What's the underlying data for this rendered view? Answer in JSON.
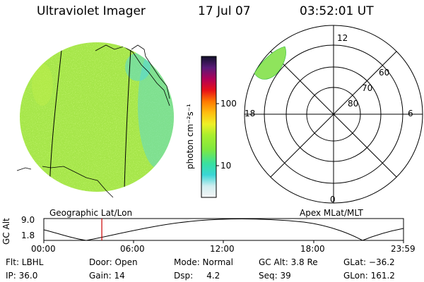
{
  "header": {
    "title": "Ultraviolet Imager",
    "date": "17 Jul 07",
    "time": "03:52:01 UT"
  },
  "colorbar": {
    "label": "photon cm⁻²s⁻¹",
    "ticks": [
      "100",
      "10"
    ]
  },
  "panels": {
    "left_caption": "Geographic Lat/Lon",
    "right_caption": "Apex MLat/MLT"
  },
  "polar": {
    "mlt_labels": [
      "12",
      "18",
      "6",
      "0"
    ],
    "lat_labels": [
      "60",
      "70",
      "80"
    ]
  },
  "altitude_plot": {
    "ylabel": "GC Alt",
    "ytick_top": "9.0",
    "ytick_bottom": "1.8",
    "xticks": [
      "00:00",
      "06:00",
      "12:00",
      "18:00",
      "23:59"
    ],
    "marker_time_hours": 3.87,
    "line_color": "#cc0000"
  },
  "info": {
    "flt": "Flt: LBHL",
    "door": "Door: Open",
    "mode": "Mode: Normal",
    "gc_alt": "GC Alt: 3.8 Re",
    "glat": "GLat: −36.2",
    "ip": "IP: 36.0",
    "gain": "Gain: 14",
    "dsp": "Dsp:     4.2",
    "seq": "Seq: 39",
    "glon": "GLon: 161.2"
  }
}
